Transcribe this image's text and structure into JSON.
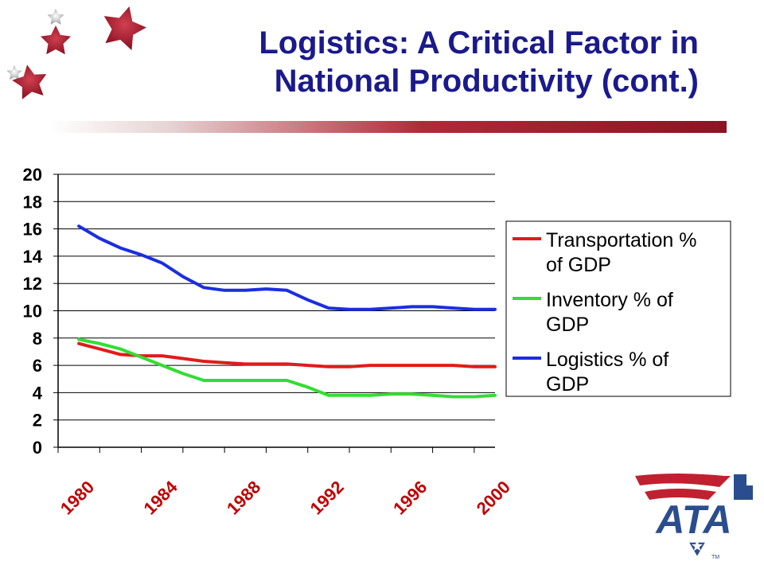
{
  "header": {
    "title_line1": "Logistics: A Critical Factor in",
    "title_line2": "National Productivity (cont.)"
  },
  "logo": {
    "text": "ATA",
    "tm": "TM"
  },
  "decor": {
    "icon": "star-icon"
  },
  "colors": {
    "title": "#1a1a8c",
    "rule": "#8c1424",
    "logo_blue": "#2a4d8f",
    "logo_red": "#c0202f"
  },
  "chart_data": {
    "type": "line",
    "title": "",
    "xlabel": "",
    "ylabel": "",
    "ylim": [
      0,
      20
    ],
    "yticks": [
      "0",
      "2",
      "4",
      "6",
      "8",
      "10",
      "12",
      "14",
      "16",
      "18",
      "20"
    ],
    "xlim": [
      1980,
      2001
    ],
    "xtick_labels": [
      "1980",
      "1984",
      "1988",
      "1992",
      "1996",
      "2000"
    ],
    "x": [
      1981,
      1982,
      1983,
      1984,
      1985,
      1986,
      1987,
      1988,
      1989,
      1990,
      1991,
      1992,
      1993,
      1994,
      1995,
      1996,
      1997,
      1998,
      1999,
      2000,
      2001
    ],
    "grid": true,
    "legend": "right",
    "series": [
      {
        "name": "Transportation % of GDP",
        "color": "#e01b1b",
        "values": [
          7.6,
          7.2,
          6.8,
          6.7,
          6.7,
          6.5,
          6.3,
          6.2,
          6.1,
          6.1,
          6.1,
          6.0,
          5.9,
          5.9,
          6.0,
          6.0,
          6.0,
          6.0,
          6.0,
          5.9,
          5.9
        ]
      },
      {
        "name": "Inventory % of GDP",
        "color": "#33dd33",
        "values": [
          7.9,
          7.6,
          7.2,
          6.6,
          6.0,
          5.4,
          4.9,
          4.9,
          4.9,
          4.9,
          4.9,
          4.4,
          3.8,
          3.8,
          3.8,
          3.9,
          3.9,
          3.8,
          3.7,
          3.7,
          3.8
        ]
      },
      {
        "name": "Logistics % of GDP",
        "color": "#1a2ee0",
        "values": [
          16.2,
          15.3,
          14.6,
          14.1,
          13.5,
          12.5,
          11.7,
          11.5,
          11.5,
          11.6,
          11.5,
          10.8,
          10.2,
          10.1,
          10.1,
          10.2,
          10.3,
          10.3,
          10.2,
          10.1,
          10.1
        ]
      }
    ],
    "legend_lines": [
      [
        "Transportation %",
        "of GDP"
      ],
      [
        "Inventory % of",
        "GDP"
      ],
      [
        "Logistics % of",
        "GDP"
      ]
    ]
  }
}
